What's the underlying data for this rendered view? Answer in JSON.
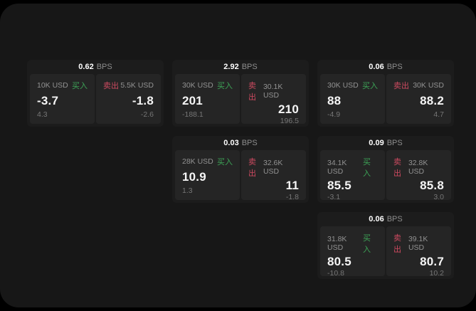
{
  "labels": {
    "bps_unit": "BPS",
    "buy": "买入",
    "sell": "卖出"
  },
  "colors": {
    "buy": "#3da457",
    "sell": "#cd4a60",
    "background": "#171717",
    "card": "#1c1c1c",
    "panel": "#252525"
  },
  "cards": [
    {
      "col": 1,
      "row": 1,
      "bps": "0.62",
      "buy": {
        "amount": "10K USD",
        "value": "-3.7",
        "delta": "4.3"
      },
      "sell": {
        "amount": "5.5K USD",
        "value": "-1.8",
        "delta": "-2.6"
      }
    },
    {
      "col": 2,
      "row": 1,
      "bps": "2.92",
      "buy": {
        "amount": "30K USD",
        "value": "201",
        "delta": "-188.1"
      },
      "sell": {
        "amount": "30.1K USD",
        "value": "210",
        "delta": "196.5"
      }
    },
    {
      "col": 3,
      "row": 1,
      "bps": "0.06",
      "buy": {
        "amount": "30K USD",
        "value": "88",
        "delta": "-4.9"
      },
      "sell": {
        "amount": "30K USD",
        "value": "88.2",
        "delta": "4.7"
      }
    },
    {
      "col": 2,
      "row": 2,
      "bps": "0.03",
      "buy": {
        "amount": "28K USD",
        "value": "10.9",
        "delta": "1.3"
      },
      "sell": {
        "amount": "32.6K USD",
        "value": "11",
        "delta": "-1.8"
      }
    },
    {
      "col": 3,
      "row": 2,
      "bps": "0.09",
      "buy": {
        "amount": "34.1K USD",
        "value": "85.5",
        "delta": "-3.1"
      },
      "sell": {
        "amount": "32.8K USD",
        "value": "85.8",
        "delta": "3.0"
      }
    },
    {
      "col": 3,
      "row": 3,
      "bps": "0.06",
      "buy": {
        "amount": "31.8K USD",
        "value": "80.5",
        "delta": "-10.8"
      },
      "sell": {
        "amount": "39.1K USD",
        "value": "80.7",
        "delta": "10.2"
      }
    }
  ]
}
